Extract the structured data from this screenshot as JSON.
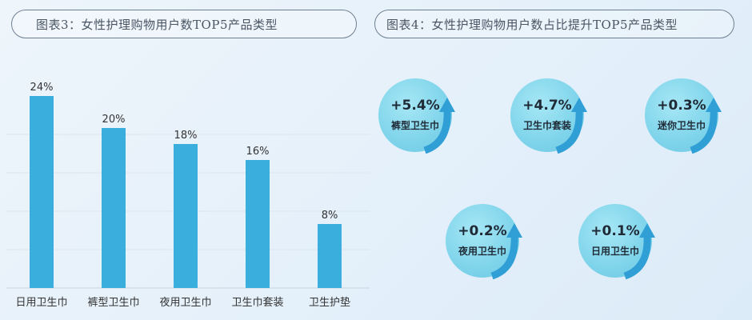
{
  "titles": {
    "left": "图表3：女性护理购物用户数TOP5产品类型",
    "right": "图表4：女性护理购物用户数占比提升TOP5产品类型"
  },
  "chart_data": [
    {
      "type": "bar",
      "title": "图表3：女性护理购物用户数TOP5产品类型",
      "categories": [
        "日用卫生巾",
        "裤型卫生巾",
        "夜用卫生巾",
        "卫生巾套装",
        "卫生护垫"
      ],
      "values": [
        24,
        20,
        18,
        16,
        8
      ],
      "value_labels": [
        "24%",
        "20%",
        "18%",
        "16%",
        "8%"
      ],
      "unit": "%",
      "ylim": [
        0,
        24
      ],
      "grid": true,
      "color": "#3aaedd"
    },
    {
      "type": "bubble",
      "title": "图表4：女性护理购物用户数占比提升TOP5产品类型",
      "items": [
        {
          "label": "裤型卫生巾",
          "value": 5.4,
          "value_text": "+5.4%"
        },
        {
          "label": "卫生巾套装",
          "value": 4.7,
          "value_text": "+4.7%"
        },
        {
          "label": "迷你卫生巾",
          "value": 0.3,
          "value_text": "+0.3%"
        },
        {
          "label": "夜用卫生巾",
          "value": 0.2,
          "value_text": "+0.2%"
        },
        {
          "label": "日用卫生巾",
          "value": 0.1,
          "value_text": "+0.1%"
        }
      ],
      "colors": {
        "circle": "#7dd3ea",
        "arrow": "#2f9fd6"
      }
    }
  ]
}
